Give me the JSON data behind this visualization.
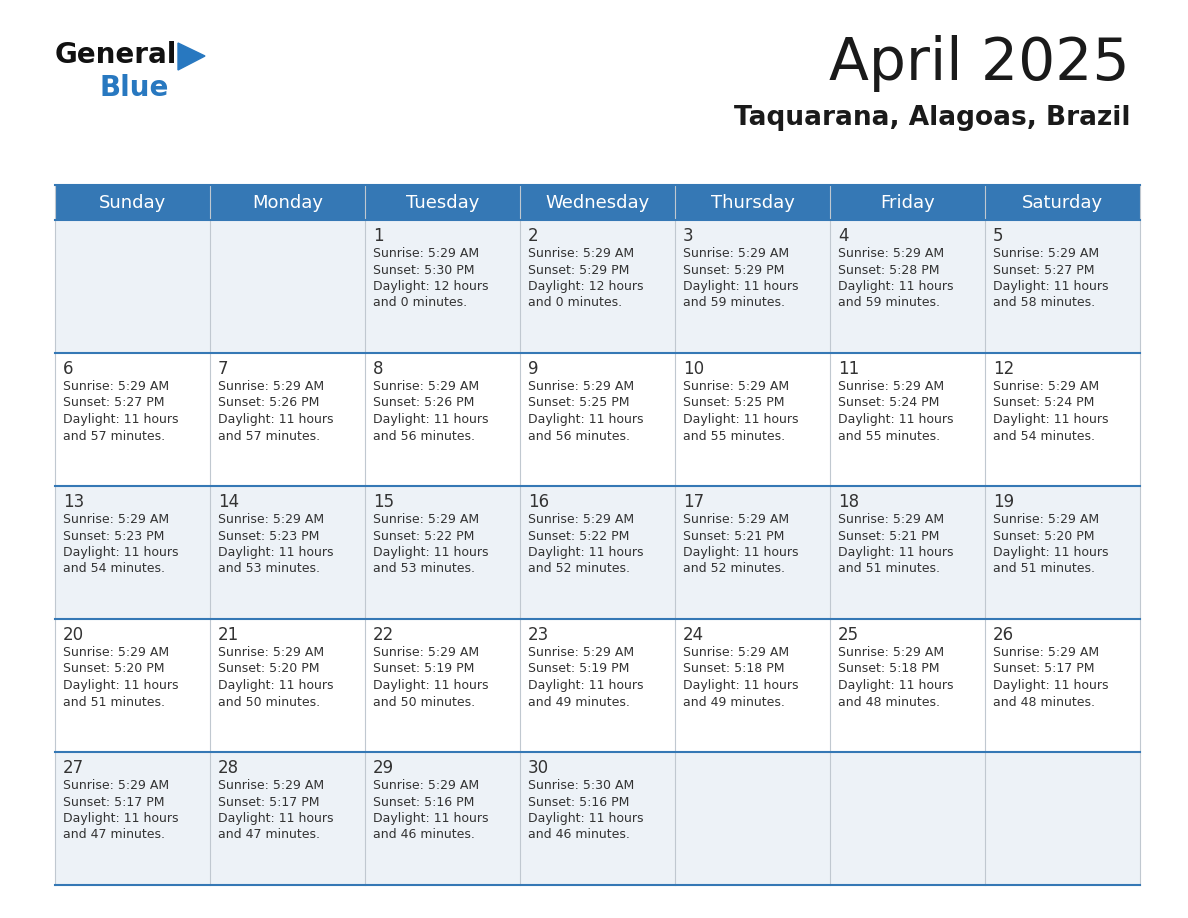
{
  "title": "April 2025",
  "subtitle": "Taquarana, Alagoas, Brazil",
  "header_bg_color": "#3578b5",
  "header_text_color": "#ffffff",
  "day_names": [
    "Sunday",
    "Monday",
    "Tuesday",
    "Wednesday",
    "Thursday",
    "Friday",
    "Saturday"
  ],
  "row_bg_even": "#edf2f7",
  "row_bg_odd": "#ffffff",
  "grid_line_color": "#3578b5",
  "cell_border_color": "#c0c8d0",
  "day_num_color": "#333333",
  "info_text_color": "#333333",
  "title_color": "#1a1a1a",
  "subtitle_color": "#1a1a1a",
  "days": [
    {
      "day": 1,
      "col": 2,
      "row": 0,
      "sunrise": "5:29 AM",
      "sunset": "5:30 PM",
      "daylight_line1": "Daylight: 12 hours",
      "daylight_line2": "and 0 minutes."
    },
    {
      "day": 2,
      "col": 3,
      "row": 0,
      "sunrise": "5:29 AM",
      "sunset": "5:29 PM",
      "daylight_line1": "Daylight: 12 hours",
      "daylight_line2": "and 0 minutes."
    },
    {
      "day": 3,
      "col": 4,
      "row": 0,
      "sunrise": "5:29 AM",
      "sunset": "5:29 PM",
      "daylight_line1": "Daylight: 11 hours",
      "daylight_line2": "and 59 minutes."
    },
    {
      "day": 4,
      "col": 5,
      "row": 0,
      "sunrise": "5:29 AM",
      "sunset": "5:28 PM",
      "daylight_line1": "Daylight: 11 hours",
      "daylight_line2": "and 59 minutes."
    },
    {
      "day": 5,
      "col": 6,
      "row": 0,
      "sunrise": "5:29 AM",
      "sunset": "5:27 PM",
      "daylight_line1": "Daylight: 11 hours",
      "daylight_line2": "and 58 minutes."
    },
    {
      "day": 6,
      "col": 0,
      "row": 1,
      "sunrise": "5:29 AM",
      "sunset": "5:27 PM",
      "daylight_line1": "Daylight: 11 hours",
      "daylight_line2": "and 57 minutes."
    },
    {
      "day": 7,
      "col": 1,
      "row": 1,
      "sunrise": "5:29 AM",
      "sunset": "5:26 PM",
      "daylight_line1": "Daylight: 11 hours",
      "daylight_line2": "and 57 minutes."
    },
    {
      "day": 8,
      "col": 2,
      "row": 1,
      "sunrise": "5:29 AM",
      "sunset": "5:26 PM",
      "daylight_line1": "Daylight: 11 hours",
      "daylight_line2": "and 56 minutes."
    },
    {
      "day": 9,
      "col": 3,
      "row": 1,
      "sunrise": "5:29 AM",
      "sunset": "5:25 PM",
      "daylight_line1": "Daylight: 11 hours",
      "daylight_line2": "and 56 minutes."
    },
    {
      "day": 10,
      "col": 4,
      "row": 1,
      "sunrise": "5:29 AM",
      "sunset": "5:25 PM",
      "daylight_line1": "Daylight: 11 hours",
      "daylight_line2": "and 55 minutes."
    },
    {
      "day": 11,
      "col": 5,
      "row": 1,
      "sunrise": "5:29 AM",
      "sunset": "5:24 PM",
      "daylight_line1": "Daylight: 11 hours",
      "daylight_line2": "and 55 minutes."
    },
    {
      "day": 12,
      "col": 6,
      "row": 1,
      "sunrise": "5:29 AM",
      "sunset": "5:24 PM",
      "daylight_line1": "Daylight: 11 hours",
      "daylight_line2": "and 54 minutes."
    },
    {
      "day": 13,
      "col": 0,
      "row": 2,
      "sunrise": "5:29 AM",
      "sunset": "5:23 PM",
      "daylight_line1": "Daylight: 11 hours",
      "daylight_line2": "and 54 minutes."
    },
    {
      "day": 14,
      "col": 1,
      "row": 2,
      "sunrise": "5:29 AM",
      "sunset": "5:23 PM",
      "daylight_line1": "Daylight: 11 hours",
      "daylight_line2": "and 53 minutes."
    },
    {
      "day": 15,
      "col": 2,
      "row": 2,
      "sunrise": "5:29 AM",
      "sunset": "5:22 PM",
      "daylight_line1": "Daylight: 11 hours",
      "daylight_line2": "and 53 minutes."
    },
    {
      "day": 16,
      "col": 3,
      "row": 2,
      "sunrise": "5:29 AM",
      "sunset": "5:22 PM",
      "daylight_line1": "Daylight: 11 hours",
      "daylight_line2": "and 52 minutes."
    },
    {
      "day": 17,
      "col": 4,
      "row": 2,
      "sunrise": "5:29 AM",
      "sunset": "5:21 PM",
      "daylight_line1": "Daylight: 11 hours",
      "daylight_line2": "and 52 minutes."
    },
    {
      "day": 18,
      "col": 5,
      "row": 2,
      "sunrise": "5:29 AM",
      "sunset": "5:21 PM",
      "daylight_line1": "Daylight: 11 hours",
      "daylight_line2": "and 51 minutes."
    },
    {
      "day": 19,
      "col": 6,
      "row": 2,
      "sunrise": "5:29 AM",
      "sunset": "5:20 PM",
      "daylight_line1": "Daylight: 11 hours",
      "daylight_line2": "and 51 minutes."
    },
    {
      "day": 20,
      "col": 0,
      "row": 3,
      "sunrise": "5:29 AM",
      "sunset": "5:20 PM",
      "daylight_line1": "Daylight: 11 hours",
      "daylight_line2": "and 51 minutes."
    },
    {
      "day": 21,
      "col": 1,
      "row": 3,
      "sunrise": "5:29 AM",
      "sunset": "5:20 PM",
      "daylight_line1": "Daylight: 11 hours",
      "daylight_line2": "and 50 minutes."
    },
    {
      "day": 22,
      "col": 2,
      "row": 3,
      "sunrise": "5:29 AM",
      "sunset": "5:19 PM",
      "daylight_line1": "Daylight: 11 hours",
      "daylight_line2": "and 50 minutes."
    },
    {
      "day": 23,
      "col": 3,
      "row": 3,
      "sunrise": "5:29 AM",
      "sunset": "5:19 PM",
      "daylight_line1": "Daylight: 11 hours",
      "daylight_line2": "and 49 minutes."
    },
    {
      "day": 24,
      "col": 4,
      "row": 3,
      "sunrise": "5:29 AM",
      "sunset": "5:18 PM",
      "daylight_line1": "Daylight: 11 hours",
      "daylight_line2": "and 49 minutes."
    },
    {
      "day": 25,
      "col": 5,
      "row": 3,
      "sunrise": "5:29 AM",
      "sunset": "5:18 PM",
      "daylight_line1": "Daylight: 11 hours",
      "daylight_line2": "and 48 minutes."
    },
    {
      "day": 26,
      "col": 6,
      "row": 3,
      "sunrise": "5:29 AM",
      "sunset": "5:17 PM",
      "daylight_line1": "Daylight: 11 hours",
      "daylight_line2": "and 48 minutes."
    },
    {
      "day": 27,
      "col": 0,
      "row": 4,
      "sunrise": "5:29 AM",
      "sunset": "5:17 PM",
      "daylight_line1": "Daylight: 11 hours",
      "daylight_line2": "and 47 minutes."
    },
    {
      "day": 28,
      "col": 1,
      "row": 4,
      "sunrise": "5:29 AM",
      "sunset": "5:17 PM",
      "daylight_line1": "Daylight: 11 hours",
      "daylight_line2": "and 47 minutes."
    },
    {
      "day": 29,
      "col": 2,
      "row": 4,
      "sunrise": "5:29 AM",
      "sunset": "5:16 PM",
      "daylight_line1": "Daylight: 11 hours",
      "daylight_line2": "and 46 minutes."
    },
    {
      "day": 30,
      "col": 3,
      "row": 4,
      "sunrise": "5:30 AM",
      "sunset": "5:16 PM",
      "daylight_line1": "Daylight: 11 hours",
      "daylight_line2": "and 46 minutes."
    }
  ],
  "logo_general_color": "#111111",
  "logo_blue_color": "#2878c0",
  "logo_triangle_color": "#2878c0"
}
